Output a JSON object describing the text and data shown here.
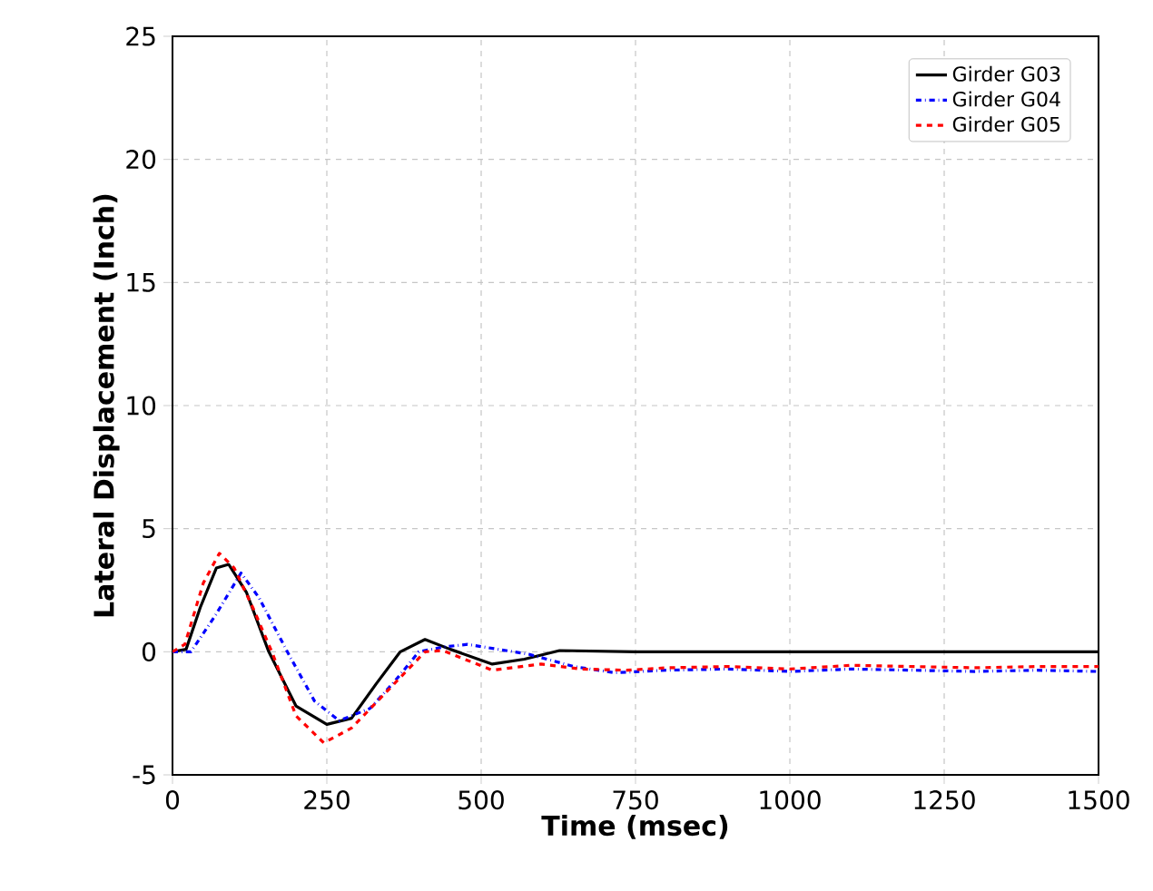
{
  "chart_data": {
    "type": "line",
    "xlabel": "Time (msec)",
    "ylabel": "Lateral Displacement (Inch)",
    "xlim": [
      0,
      1500
    ],
    "ylim": [
      -5,
      25
    ],
    "xticks": [
      0,
      250,
      500,
      750,
      1000,
      1250,
      1500
    ],
    "yticks": [
      -5,
      0,
      5,
      10,
      15,
      20,
      25
    ],
    "grid": true,
    "legend": "top right",
    "series": [
      {
        "name": "Girder G03",
        "color": "#000000",
        "line_style": "solid",
        "x": [
          0,
          22,
          45,
          71,
          91,
          120,
          156,
          200,
          250,
          290,
          330,
          369,
          409,
          450,
          518,
          570,
          627,
          750,
          1000,
          1250,
          1500
        ],
        "values": [
          0,
          0.1,
          1.8,
          3.4,
          3.55,
          2.4,
          0,
          -2.2,
          -2.95,
          -2.7,
          -1.3,
          0,
          0.5,
          0.1,
          -0.5,
          -0.3,
          0.05,
          0,
          0,
          0,
          0
        ]
      },
      {
        "name": "Girder G04",
        "color": "#0000ff",
        "line_style": "dashdot",
        "x": [
          0,
          30,
          70,
          111,
          140,
          186,
          230,
          270,
          320,
          360,
          399,
          440,
          478,
          577,
          650,
          716,
          800,
          900,
          1000,
          1100,
          1200,
          1300,
          1400,
          1500
        ],
        "values": [
          0,
          0,
          1.5,
          3.2,
          2.2,
          0,
          -2.0,
          -2.8,
          -2.3,
          -1.2,
          0,
          0.2,
          0.3,
          -0.1,
          -0.6,
          -0.85,
          -0.75,
          -0.7,
          -0.8,
          -0.7,
          -0.75,
          -0.8,
          -0.75,
          -0.8
        ]
      },
      {
        "name": "Girder G05",
        "color": "#ff0000",
        "line_style": "dashed",
        "x": [
          0,
          20,
          50,
          76,
          100,
          130,
          161,
          200,
          245,
          290,
          340,
          409,
          438,
          518,
          597,
          660,
          736,
          800,
          900,
          1000,
          1100,
          1200,
          1300,
          1400,
          1500
        ],
        "values": [
          0,
          0.3,
          2.8,
          4.0,
          3.4,
          1.8,
          0,
          -2.6,
          -3.7,
          -3.1,
          -1.8,
          0,
          0.05,
          -0.75,
          -0.5,
          -0.7,
          -0.75,
          -0.65,
          -0.6,
          -0.7,
          -0.55,
          -0.6,
          -0.65,
          -0.6,
          -0.6
        ]
      }
    ]
  }
}
